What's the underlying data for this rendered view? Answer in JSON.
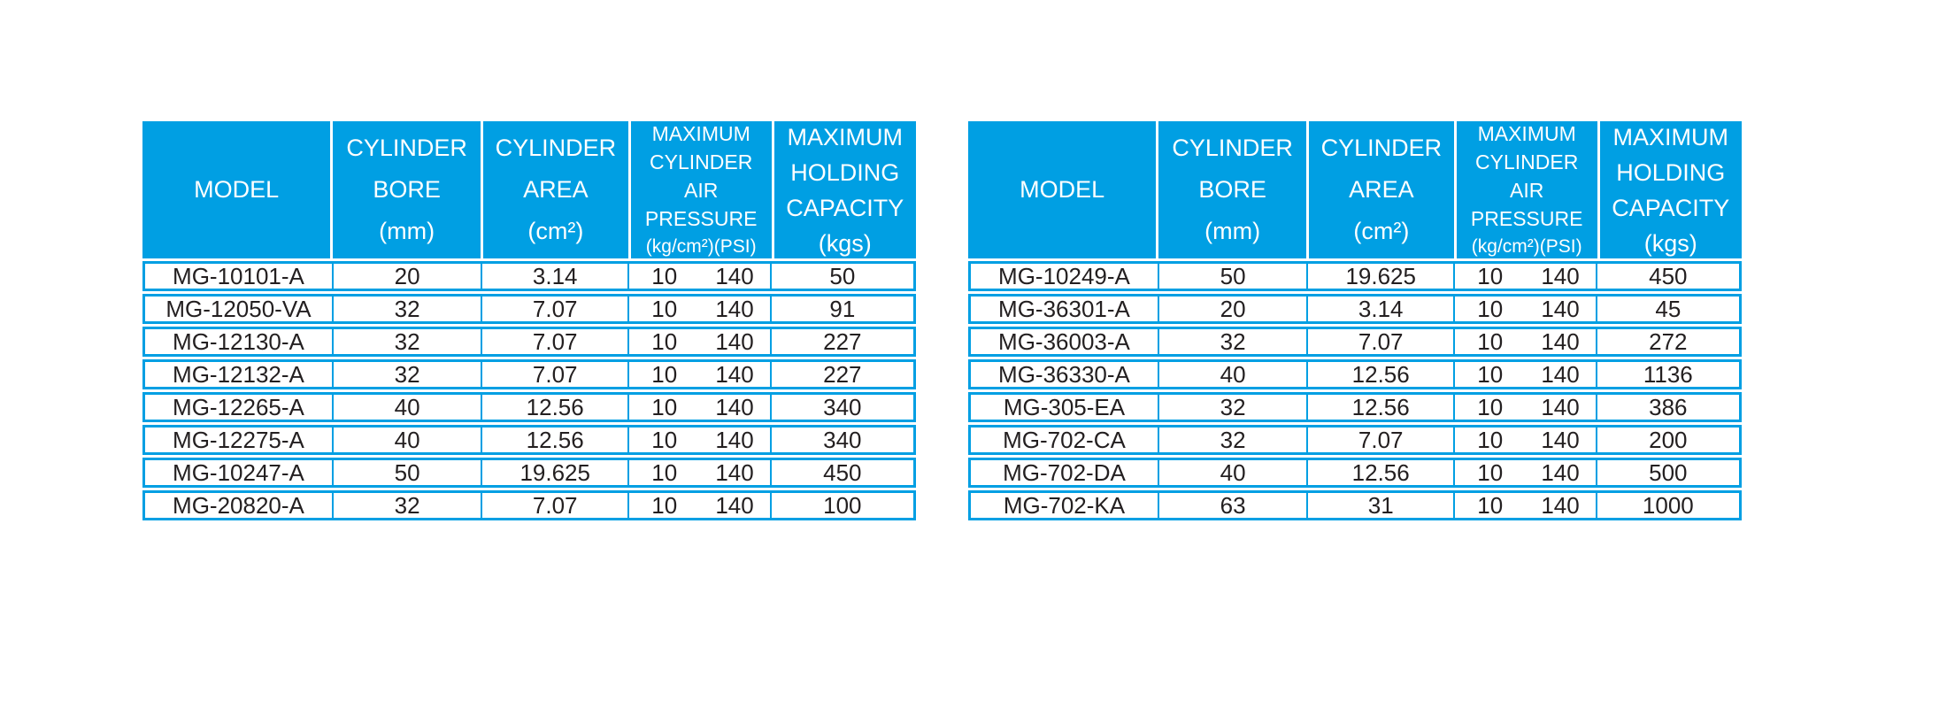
{
  "accent_color": "#009FE3",
  "text_color": "#231F20",
  "tables": [
    {
      "name": "left-spec-table",
      "columns": [
        {
          "lines": [
            "MODEL"
          ]
        },
        {
          "lines": [
            "CYLINDER",
            "BORE",
            "(mm)"
          ]
        },
        {
          "lines": [
            "CYLINDER",
            "AREA",
            "(cm²)"
          ]
        },
        {
          "lines": [
            "MAXIMUM",
            "CYLINDER",
            "AIR",
            "PRESSURE",
            "(kg/cm²)(PSI)"
          ]
        },
        {
          "lines": [
            "MAXIMUM",
            "HOLDING",
            "CAPACITY",
            "(kgs)"
          ]
        }
      ],
      "rows": [
        {
          "model": "MG-10101-A",
          "bore": "20",
          "area": "3.14",
          "pressure_kg": "10",
          "pressure_psi": "140",
          "capacity": "50"
        },
        {
          "model": "MG-12050-VA",
          "bore": "32",
          "area": "7.07",
          "pressure_kg": "10",
          "pressure_psi": "140",
          "capacity": "91"
        },
        {
          "model": "MG-12130-A",
          "bore": "32",
          "area": "7.07",
          "pressure_kg": "10",
          "pressure_psi": "140",
          "capacity": "227"
        },
        {
          "model": "MG-12132-A",
          "bore": "32",
          "area": "7.07",
          "pressure_kg": "10",
          "pressure_psi": "140",
          "capacity": "227"
        },
        {
          "model": "MG-12265-A",
          "bore": "40",
          "area": "12.56",
          "pressure_kg": "10",
          "pressure_psi": "140",
          "capacity": "340"
        },
        {
          "model": "MG-12275-A",
          "bore": "40",
          "area": "12.56",
          "pressure_kg": "10",
          "pressure_psi": "140",
          "capacity": "340"
        },
        {
          "model": "MG-10247-A",
          "bore": "50",
          "area": "19.625",
          "pressure_kg": "10",
          "pressure_psi": "140",
          "capacity": "450"
        },
        {
          "model": "MG-20820-A",
          "bore": "32",
          "area": "7.07",
          "pressure_kg": "10",
          "pressure_psi": "140",
          "capacity": "100"
        }
      ]
    },
    {
      "name": "right-spec-table",
      "columns": [
        {
          "lines": [
            "MODEL"
          ]
        },
        {
          "lines": [
            "CYLINDER",
            "BORE",
            "(mm)"
          ]
        },
        {
          "lines": [
            "CYLINDER",
            "AREA",
            "(cm²)"
          ]
        },
        {
          "lines": [
            "MAXIMUM",
            "CYLINDER",
            "AIR",
            "PRESSURE",
            "(kg/cm²)(PSI)"
          ]
        },
        {
          "lines": [
            "MAXIMUM",
            "HOLDING",
            "CAPACITY",
            "(kgs)"
          ]
        }
      ],
      "rows": [
        {
          "model": "MG-10249-A",
          "bore": "50",
          "area": "19.625",
          "pressure_kg": "10",
          "pressure_psi": "140",
          "capacity": "450"
        },
        {
          "model": "MG-36301-A",
          "bore": "20",
          "area": "3.14",
          "pressure_kg": "10",
          "pressure_psi": "140",
          "capacity": "45"
        },
        {
          "model": "MG-36003-A",
          "bore": "32",
          "area": "7.07",
          "pressure_kg": "10",
          "pressure_psi": "140",
          "capacity": "272"
        },
        {
          "model": "MG-36330-A",
          "bore": "40",
          "area": "12.56",
          "pressure_kg": "10",
          "pressure_psi": "140",
          "capacity": "1136"
        },
        {
          "model": "MG-305-EA",
          "bore": "32",
          "area": "12.56",
          "pressure_kg": "10",
          "pressure_psi": "140",
          "capacity": "386"
        },
        {
          "model": "MG-702-CA",
          "bore": "32",
          "area": "7.07",
          "pressure_kg": "10",
          "pressure_psi": "140",
          "capacity": "200"
        },
        {
          "model": "MG-702-DA",
          "bore": "40",
          "area": "12.56",
          "pressure_kg": "10",
          "pressure_psi": "140",
          "capacity": "500"
        },
        {
          "model": "MG-702-KA",
          "bore": "63",
          "area": "31",
          "pressure_kg": "10",
          "pressure_psi": "140",
          "capacity": "1000"
        }
      ]
    }
  ]
}
